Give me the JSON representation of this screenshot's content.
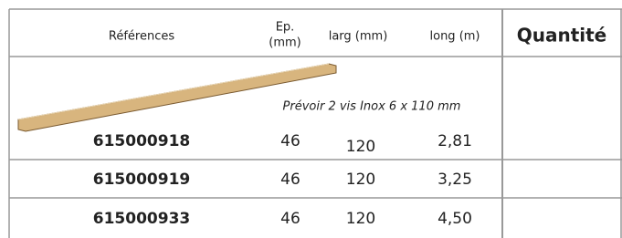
{
  "table": {
    "header": [
      "Références",
      [
        "Ep.",
        "(mm)"
      ],
      "larg (mm)",
      "long (m)",
      "Quantité"
    ],
    "note": "Prévoir 2 vis Inox 6 x 110 mm",
    "rows": [
      [
        "615000918",
        "46",
        "120",
        "2,81"
      ],
      [
        "615000919",
        "46",
        "120",
        "3,25"
      ],
      [
        "615000933",
        "46",
        "120",
        "4,50"
      ]
    ]
  }
}
